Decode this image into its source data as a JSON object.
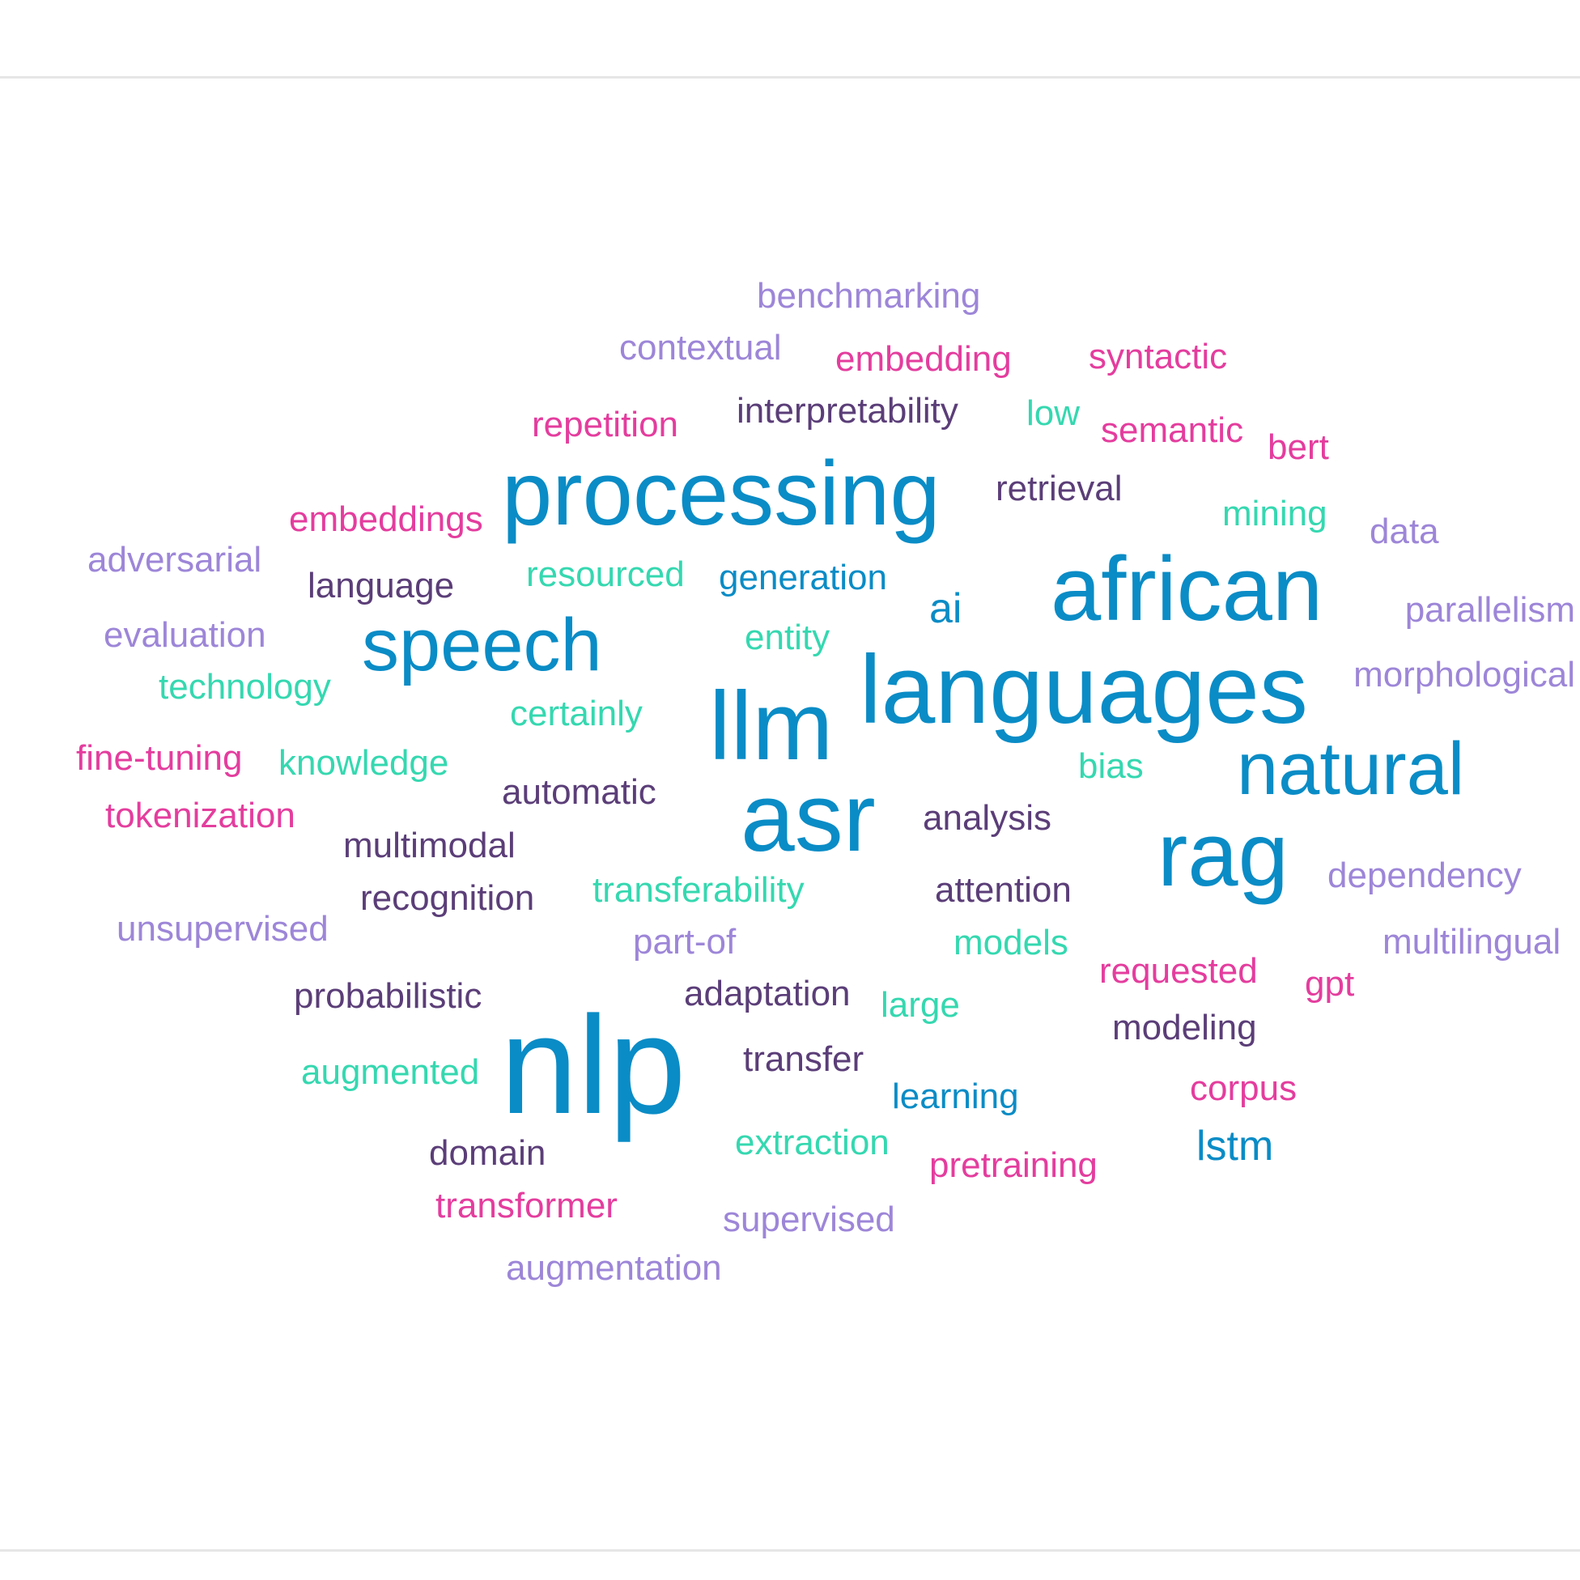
{
  "palette": {
    "blue": "#0a8cc6",
    "teal": "#35d8b0",
    "pink": "#e43d9e",
    "violet": "#9d86d8",
    "plum": "#5b3e78"
  },
  "words": [
    {
      "text": "benchmarking",
      "color": "violet",
      "size": "s1"
    },
    {
      "text": "contextual",
      "color": "violet",
      "size": "s1"
    },
    {
      "text": "embedding",
      "color": "pink",
      "size": "s1"
    },
    {
      "text": "syntactic",
      "color": "pink",
      "size": "s1"
    },
    {
      "text": "repetition",
      "color": "pink",
      "size": "s1"
    },
    {
      "text": "interpretability",
      "color": "plum",
      "size": "s1"
    },
    {
      "text": "low",
      "color": "teal",
      "size": "s1"
    },
    {
      "text": "semantic",
      "color": "pink",
      "size": "s1"
    },
    {
      "text": "bert",
      "color": "pink",
      "size": "s1"
    },
    {
      "text": "processing",
      "color": "blue",
      "size": "s4"
    },
    {
      "text": "retrieval",
      "color": "plum",
      "size": "s1"
    },
    {
      "text": "embeddings",
      "color": "pink",
      "size": "s1"
    },
    {
      "text": "mining",
      "color": "teal",
      "size": "s1"
    },
    {
      "text": "data",
      "color": "violet",
      "size": "s1"
    },
    {
      "text": "adversarial",
      "color": "violet",
      "size": "s1"
    },
    {
      "text": "language",
      "color": "plum",
      "size": "s1"
    },
    {
      "text": "resourced",
      "color": "teal",
      "size": "s1"
    },
    {
      "text": "generation",
      "color": "blue",
      "size": "s1"
    },
    {
      "text": "african",
      "color": "blue",
      "size": "s4"
    },
    {
      "text": "ai",
      "color": "blue",
      "size": "s2"
    },
    {
      "text": "parallelism",
      "color": "violet",
      "size": "s1"
    },
    {
      "text": "evaluation",
      "color": "violet",
      "size": "s1"
    },
    {
      "text": "speech",
      "color": "blue",
      "size": "s3"
    },
    {
      "text": "entity",
      "color": "teal",
      "size": "s1"
    },
    {
      "text": "languages",
      "color": "blue",
      "size": "s5"
    },
    {
      "text": "morphological",
      "color": "violet",
      "size": "s1"
    },
    {
      "text": "technology",
      "color": "teal",
      "size": "s1"
    },
    {
      "text": "certainly",
      "color": "teal",
      "size": "s1"
    },
    {
      "text": "llm",
      "color": "blue",
      "size": "s5"
    },
    {
      "text": "fine-tuning",
      "color": "pink",
      "size": "s1"
    },
    {
      "text": "knowledge",
      "color": "teal",
      "size": "s1"
    },
    {
      "text": "bias",
      "color": "teal",
      "size": "s1"
    },
    {
      "text": "natural",
      "color": "blue",
      "size": "s3"
    },
    {
      "text": "automatic",
      "color": "plum",
      "size": "s1"
    },
    {
      "text": "asr",
      "color": "blue",
      "size": "s5"
    },
    {
      "text": "tokenization",
      "color": "pink",
      "size": "s1"
    },
    {
      "text": "analysis",
      "color": "plum",
      "size": "s1"
    },
    {
      "text": "multimodal",
      "color": "plum",
      "size": "s1"
    },
    {
      "text": "rag",
      "color": "blue",
      "size": "s4"
    },
    {
      "text": "dependency",
      "color": "violet",
      "size": "s1"
    },
    {
      "text": "recognition",
      "color": "plum",
      "size": "s1"
    },
    {
      "text": "transferability",
      "color": "teal",
      "size": "s1"
    },
    {
      "text": "attention",
      "color": "plum",
      "size": "s1"
    },
    {
      "text": "unsupervised",
      "color": "violet",
      "size": "s1"
    },
    {
      "text": "part-of",
      "color": "violet",
      "size": "s1"
    },
    {
      "text": "models",
      "color": "teal",
      "size": "s1"
    },
    {
      "text": "multilingual",
      "color": "violet",
      "size": "s1"
    },
    {
      "text": "requested",
      "color": "pink",
      "size": "s1"
    },
    {
      "text": "probabilistic",
      "color": "plum",
      "size": "s1"
    },
    {
      "text": "adaptation",
      "color": "plum",
      "size": "s1"
    },
    {
      "text": "large",
      "color": "teal",
      "size": "s1"
    },
    {
      "text": "gpt",
      "color": "pink",
      "size": "s1"
    },
    {
      "text": "nlp",
      "color": "blue",
      "size": "s6"
    },
    {
      "text": "modeling",
      "color": "plum",
      "size": "s1"
    },
    {
      "text": "transfer",
      "color": "plum",
      "size": "s1"
    },
    {
      "text": "augmented",
      "color": "teal",
      "size": "s1"
    },
    {
      "text": "learning",
      "color": "blue",
      "size": "s1"
    },
    {
      "text": "corpus",
      "color": "pink",
      "size": "s1"
    },
    {
      "text": "extraction",
      "color": "teal",
      "size": "s1"
    },
    {
      "text": "lstm",
      "color": "blue",
      "size": "s2"
    },
    {
      "text": "domain",
      "color": "plum",
      "size": "s1"
    },
    {
      "text": "pretraining",
      "color": "pink",
      "size": "s1"
    },
    {
      "text": "transformer",
      "color": "pink",
      "size": "s1"
    },
    {
      "text": "supervised",
      "color": "violet",
      "size": "s1"
    },
    {
      "text": "augmentation",
      "color": "violet",
      "size": "s1"
    }
  ]
}
